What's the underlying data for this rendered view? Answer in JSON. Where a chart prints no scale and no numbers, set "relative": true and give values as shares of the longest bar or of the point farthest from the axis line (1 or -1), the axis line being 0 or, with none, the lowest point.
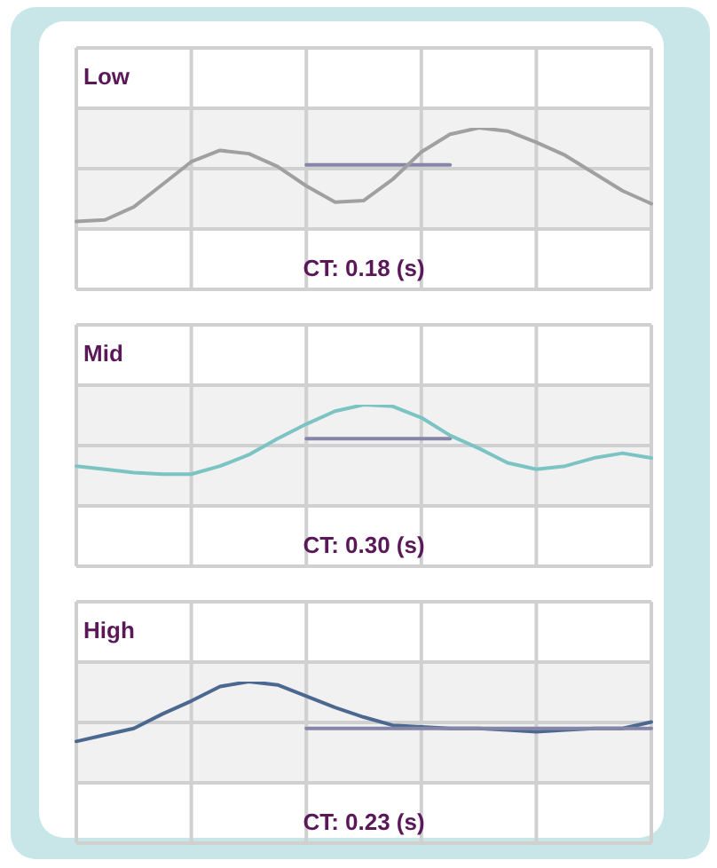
{
  "chart_data": [
    {
      "type": "line",
      "title": "Low",
      "relative": true,
      "grid": true,
      "marker": "none",
      "line_style": "solid",
      "legend": false,
      "annotations": [
        "CT: 0.18 (s)"
      ],
      "categories": [
        null,
        null,
        null,
        null,
        null,
        null,
        null,
        null,
        null,
        null,
        null,
        null,
        null,
        null,
        null,
        null,
        null,
        null,
        null,
        null,
        null
      ],
      "series": [
        {
          "color": "#a0a0a0",
          "values": [
            0.42,
            0.43,
            0.51,
            0.65,
            0.79,
            0.86,
            0.84,
            0.76,
            0.64,
            0.54,
            0.55,
            0.68,
            0.85,
            0.96,
            1,
            0.98,
            0.91,
            0.83,
            0.72,
            0.61,
            0.53
          ]
        },
        {
          "color": "#8585a8",
          "values": [
            null,
            null,
            null,
            null,
            null,
            null,
            null,
            null,
            0.77,
            0.77,
            0.77,
            0.77,
            0.77,
            0.77,
            null,
            null,
            null,
            null,
            null,
            null,
            null
          ]
        }
      ]
    },
    {
      "type": "line",
      "title": "Mid",
      "relative": true,
      "grid": true,
      "marker": "none",
      "line_style": "solid",
      "legend": false,
      "annotations": [
        "CT: 0.30 (s)"
      ],
      "categories": [
        null,
        null,
        null,
        null,
        null,
        null,
        null,
        null,
        null,
        null,
        null,
        null,
        null,
        null,
        null,
        null,
        null,
        null,
        null,
        null,
        null
      ],
      "series": [
        {
          "color": "#7cc4c4",
          "values": [
            0.62,
            0.6,
            0.58,
            0.57,
            0.57,
            0.62,
            0.69,
            0.79,
            0.88,
            0.96,
            1,
            0.99,
            0.92,
            0.81,
            0.73,
            0.64,
            0.6,
            0.62,
            0.67,
            0.7,
            0.67
          ]
        },
        {
          "color": "#8585a8",
          "values": [
            null,
            null,
            null,
            null,
            null,
            null,
            null,
            null,
            0.79,
            0.79,
            0.79,
            0.79,
            0.79,
            0.79,
            null,
            null,
            null,
            null,
            null,
            null,
            null
          ]
        }
      ]
    },
    {
      "type": "line",
      "title": "High",
      "relative": true,
      "grid": true,
      "marker": "none",
      "line_style": "solid",
      "legend": false,
      "annotations": [
        "CT: 0.23 (s)"
      ],
      "categories": [
        null,
        null,
        null,
        null,
        null,
        null,
        null,
        null,
        null,
        null,
        null,
        null,
        null,
        null,
        null,
        null,
        null,
        null,
        null,
        null,
        null
      ],
      "series": [
        {
          "color": "#8585a8",
          "values": [
            null,
            null,
            null,
            null,
            null,
            null,
            null,
            null,
            0.71,
            0.71,
            0.71,
            0.71,
            0.71,
            0.71,
            0.71,
            0.71,
            0.71,
            0.71,
            0.71,
            0.71,
            0.71
          ]
        },
        {
          "color": "#4a6890",
          "values": [
            0.63,
            0.67,
            0.71,
            0.8,
            0.88,
            0.97,
            1,
            0.98,
            0.91,
            0.84,
            0.78,
            0.73,
            0.72,
            0.71,
            0.71,
            0.7,
            0.69,
            0.7,
            0.71,
            0.71,
            0.75
          ]
        }
      ]
    }
  ]
}
